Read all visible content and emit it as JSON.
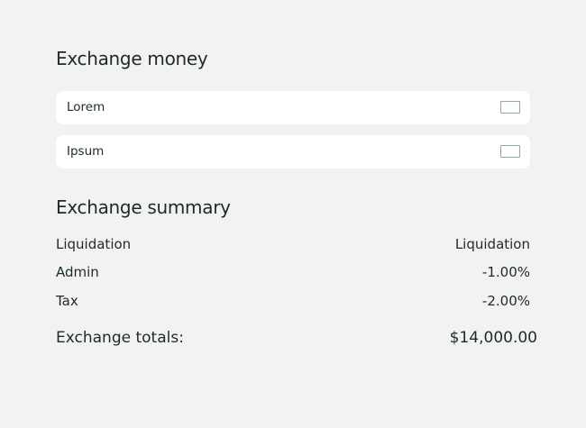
{
  "exchange_money": {
    "title": "Exchange money",
    "fields": [
      {
        "label": "Lorem"
      },
      {
        "label": "Ipsum"
      }
    ]
  },
  "summary": {
    "title": "Exchange summary",
    "rows": [
      {
        "label": "Liquidation",
        "value": "Liquidation"
      },
      {
        "label": "Admin",
        "value": "-1.00%"
      },
      {
        "label": "Tax",
        "value": "-2.00%"
      }
    ],
    "total_label": "Exchange totals:",
    "total_value": "$14,000.00"
  }
}
